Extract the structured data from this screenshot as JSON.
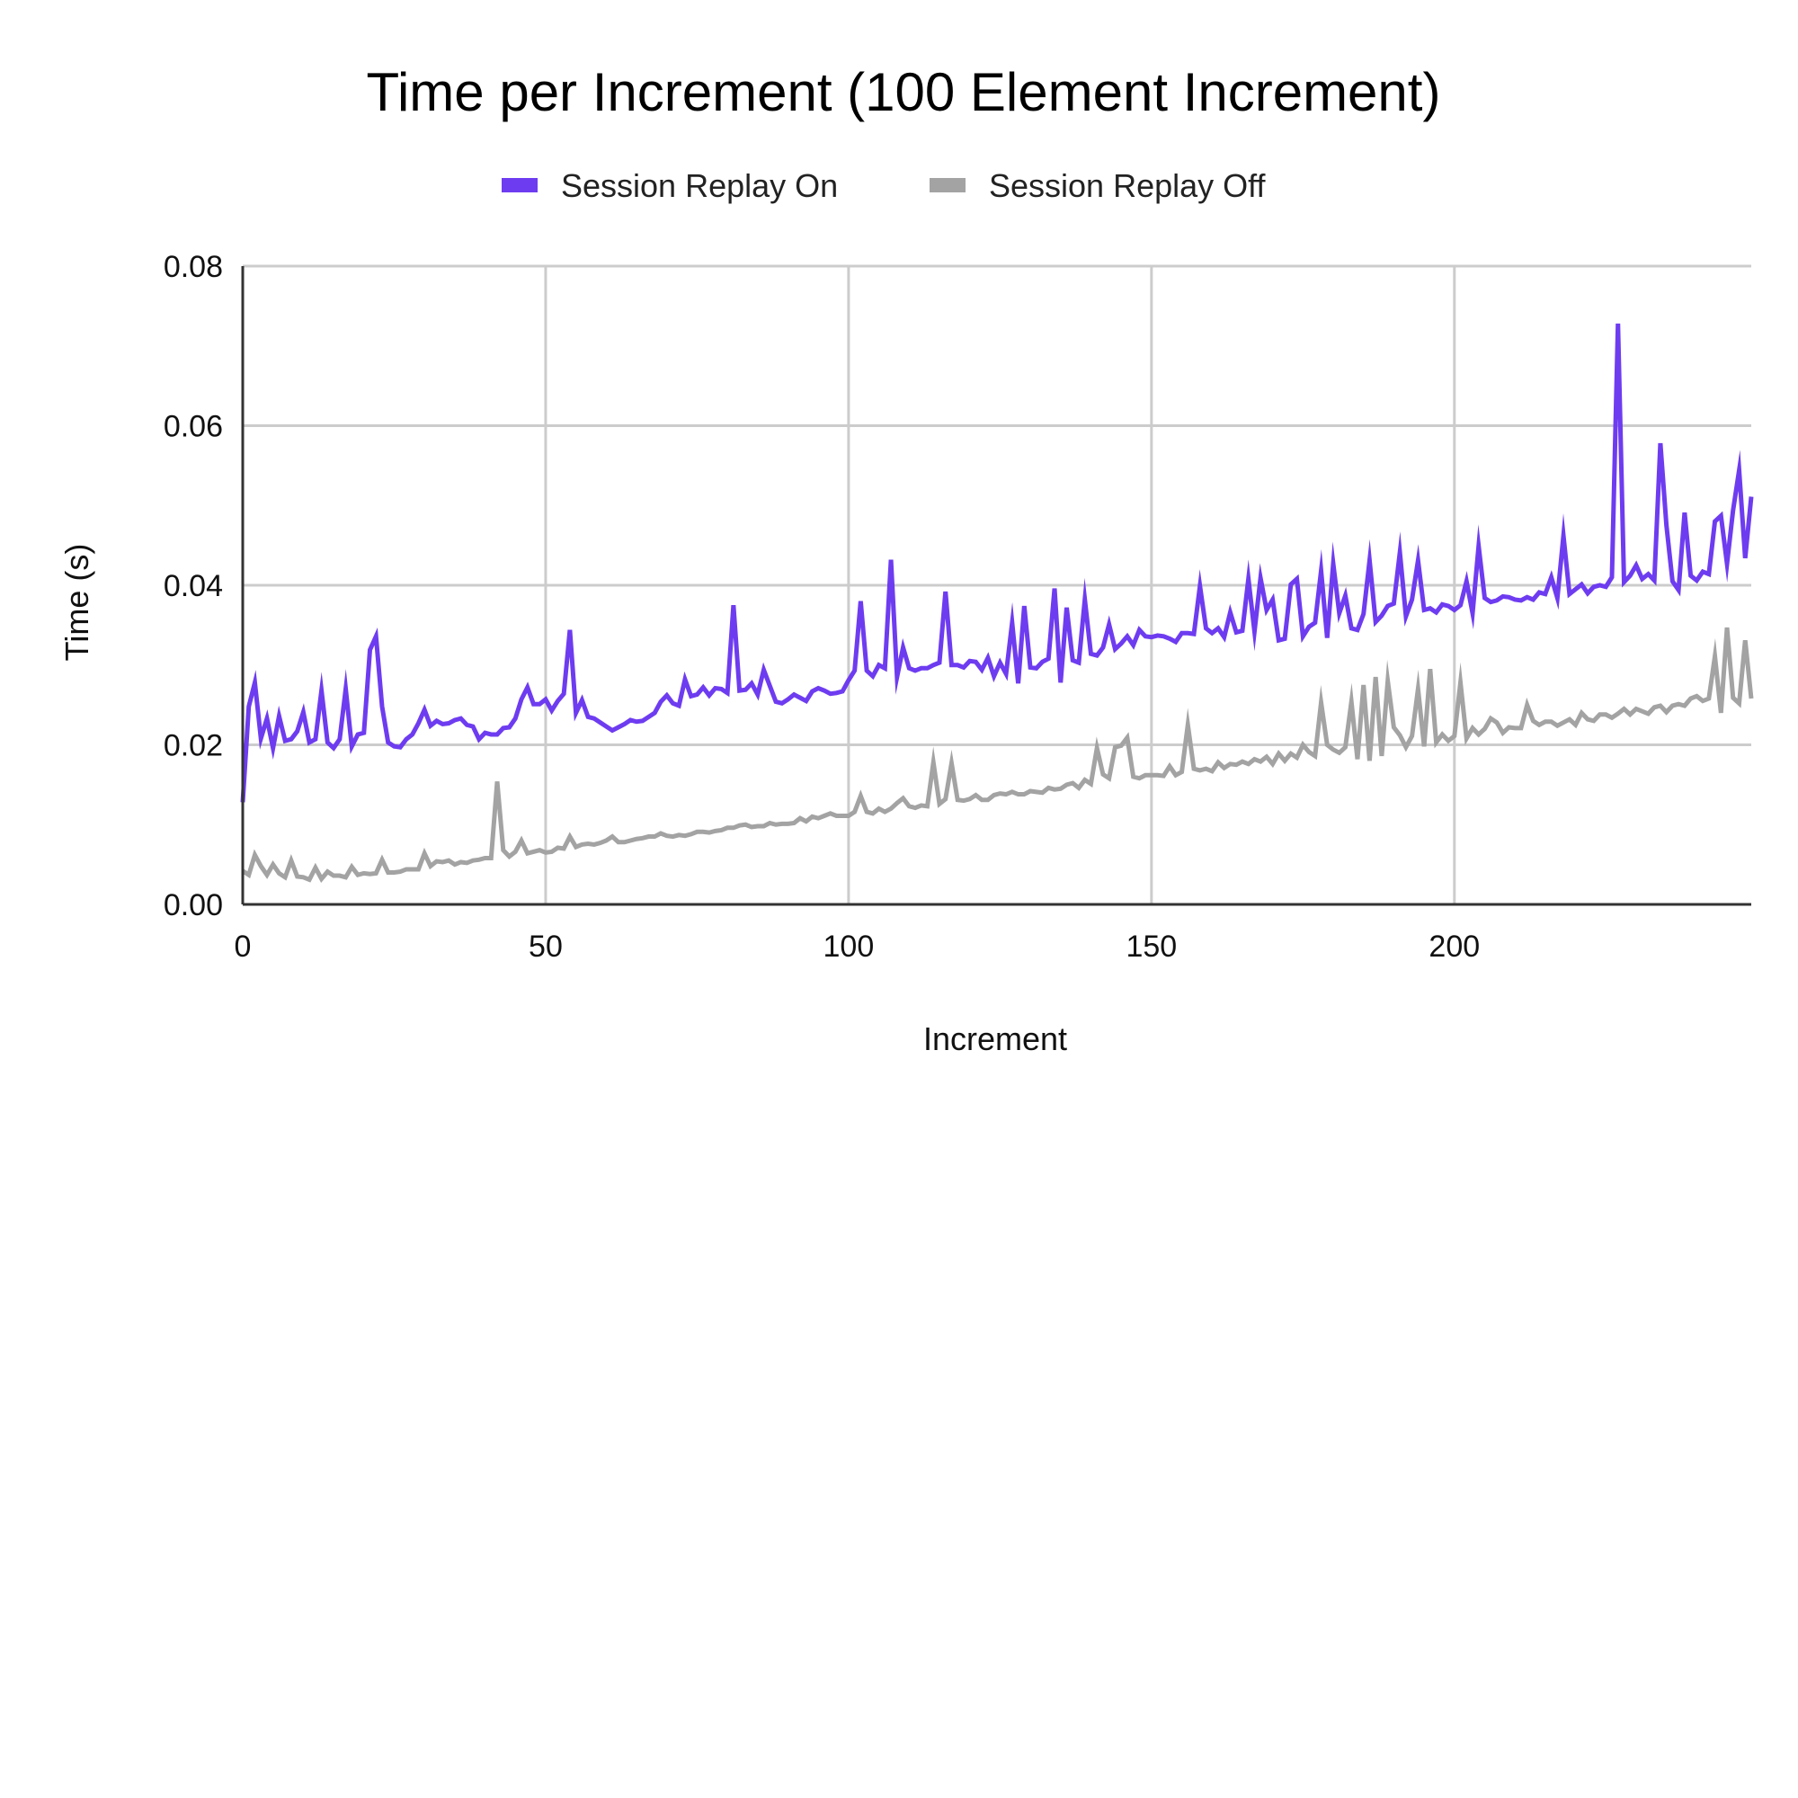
{
  "chart_data": {
    "type": "line",
    "title": "Time per Increment (100 Element Increment)",
    "xlabel": "Increment",
    "ylabel": "Time (s)",
    "xlim": [
      0,
      249
    ],
    "ylim": [
      0,
      0.08
    ],
    "x_ticks": [
      0,
      50,
      100,
      150,
      200
    ],
    "y_ticks": [
      0,
      0.02,
      0.04,
      0.06,
      0.08
    ],
    "x_tick_labels": [
      "0",
      "50",
      "100",
      "150",
      "200"
    ],
    "y_tick_labels": [
      "0.00",
      "0.02",
      "0.04",
      "0.06",
      "0.08"
    ],
    "grid": true,
    "legend_position": "top",
    "series": [
      {
        "name": "Session Replay On",
        "color": "#6e3cf0",
        "values": [
          0.0128,
          0.0248,
          0.0278,
          0.0208,
          0.0233,
          0.0196,
          0.0236,
          0.0205,
          0.0207,
          0.0217,
          0.0241,
          0.0203,
          0.0207,
          0.0268,
          0.0203,
          0.0196,
          0.0207,
          0.027,
          0.0198,
          0.0213,
          0.0215,
          0.0319,
          0.0336,
          0.0248,
          0.0203,
          0.0198,
          0.0197,
          0.0207,
          0.0213,
          0.0227,
          0.0244,
          0.0224,
          0.023,
          0.0226,
          0.0227,
          0.0231,
          0.0233,
          0.0225,
          0.0223,
          0.0207,
          0.0215,
          0.0213,
          0.0213,
          0.0221,
          0.0222,
          0.0233,
          0.0257,
          0.0272,
          0.0251,
          0.0251,
          0.0257,
          0.0243,
          0.0255,
          0.0264,
          0.0344,
          0.024,
          0.0256,
          0.0235,
          0.0233,
          0.0228,
          0.0223,
          0.0218,
          0.0222,
          0.0226,
          0.0231,
          0.0229,
          0.023,
          0.0235,
          0.024,
          0.0254,
          0.0262,
          0.0252,
          0.0249,
          0.0282,
          0.0261,
          0.0263,
          0.0272,
          0.0262,
          0.0271,
          0.027,
          0.0265,
          0.0375,
          0.0268,
          0.0269,
          0.0277,
          0.0263,
          0.0294,
          0.0274,
          0.0254,
          0.0252,
          0.0257,
          0.0263,
          0.0259,
          0.0255,
          0.0267,
          0.0271,
          0.0268,
          0.0264,
          0.0265,
          0.0267,
          0.0281,
          0.0293,
          0.038,
          0.0293,
          0.0286,
          0.03,
          0.0296,
          0.0432,
          0.0285,
          0.0322,
          0.0296,
          0.0293,
          0.0296,
          0.0296,
          0.03,
          0.0303,
          0.0392,
          0.03,
          0.03,
          0.0297,
          0.0305,
          0.0304,
          0.0294,
          0.0309,
          0.0286,
          0.0303,
          0.0289,
          0.0353,
          0.0277,
          0.0374,
          0.0297,
          0.0296,
          0.0304,
          0.0308,
          0.0396,
          0.0278,
          0.0372,
          0.0306,
          0.0303,
          0.0382,
          0.0314,
          0.0312,
          0.0322,
          0.0351,
          0.032,
          0.0327,
          0.0336,
          0.0325,
          0.0344,
          0.0336,
          0.0335,
          0.0337,
          0.0336,
          0.0333,
          0.0329,
          0.034,
          0.034,
          0.0339,
          0.0399,
          0.0346,
          0.034,
          0.0346,
          0.0335,
          0.0366,
          0.0341,
          0.0343,
          0.0408,
          0.0342,
          0.0409,
          0.0369,
          0.0382,
          0.0331,
          0.0333,
          0.0401,
          0.0408,
          0.0336,
          0.0348,
          0.0353,
          0.0418,
          0.0334,
          0.0427,
          0.0365,
          0.0387,
          0.0346,
          0.0344,
          0.0364,
          0.0431,
          0.0354,
          0.0362,
          0.0374,
          0.0377,
          0.0441,
          0.0361,
          0.0382,
          0.0431,
          0.0369,
          0.0371,
          0.0366,
          0.0376,
          0.0374,
          0.0369,
          0.0375,
          0.0405,
          0.0365,
          0.0449,
          0.0384,
          0.0379,
          0.0381,
          0.0386,
          0.0385,
          0.0382,
          0.0381,
          0.0385,
          0.0382,
          0.0391,
          0.0389,
          0.041,
          0.0384,
          0.0462,
          0.0389,
          0.0395,
          0.0401,
          0.039,
          0.0398,
          0.04,
          0.0398,
          0.041,
          0.0728,
          0.0404,
          0.0412,
          0.0425,
          0.0408,
          0.0414,
          0.0406,
          0.0578,
          0.0475,
          0.0405,
          0.0394,
          0.0491,
          0.0412,
          0.0406,
          0.0417,
          0.0414,
          0.048,
          0.0487,
          0.0427,
          0.0494,
          0.0544,
          0.0434,
          0.0511
        ]
      },
      {
        "name": "Session Replay Off",
        "color": "#a3a3a3",
        "values": [
          0.0042,
          0.0037,
          0.0062,
          0.0048,
          0.0037,
          0.005,
          0.0039,
          0.0034,
          0.0055,
          0.0035,
          0.0034,
          0.0031,
          0.0046,
          0.0032,
          0.0041,
          0.0036,
          0.0036,
          0.0034,
          0.0047,
          0.0037,
          0.0039,
          0.0038,
          0.0039,
          0.0056,
          0.004,
          0.004,
          0.0041,
          0.0044,
          0.0044,
          0.0044,
          0.0064,
          0.0048,
          0.0054,
          0.0053,
          0.0055,
          0.005,
          0.0053,
          0.0052,
          0.0055,
          0.0056,
          0.0058,
          0.0058,
          0.0154,
          0.0068,
          0.006,
          0.0066,
          0.008,
          0.0064,
          0.0066,
          0.0068,
          0.0065,
          0.0066,
          0.0071,
          0.007,
          0.0085,
          0.0072,
          0.0075,
          0.0076,
          0.0075,
          0.0077,
          0.008,
          0.0085,
          0.0078,
          0.0078,
          0.008,
          0.0082,
          0.0083,
          0.0085,
          0.0085,
          0.0089,
          0.0086,
          0.0085,
          0.0087,
          0.0086,
          0.0088,
          0.0091,
          0.0091,
          0.009,
          0.0092,
          0.0093,
          0.0096,
          0.0096,
          0.0099,
          0.01,
          0.0097,
          0.0098,
          0.0098,
          0.0102,
          0.01,
          0.0101,
          0.0101,
          0.0102,
          0.0108,
          0.0104,
          0.011,
          0.0108,
          0.0111,
          0.0114,
          0.0111,
          0.0111,
          0.0111,
          0.0116,
          0.0136,
          0.0116,
          0.0114,
          0.012,
          0.0116,
          0.012,
          0.0127,
          0.0133,
          0.0123,
          0.0121,
          0.0124,
          0.0123,
          0.0178,
          0.0126,
          0.0132,
          0.0177,
          0.0131,
          0.013,
          0.0132,
          0.0137,
          0.0131,
          0.0131,
          0.0137,
          0.0139,
          0.0138,
          0.0141,
          0.0138,
          0.0138,
          0.0142,
          0.0141,
          0.014,
          0.0146,
          0.0144,
          0.0145,
          0.015,
          0.0152,
          0.0146,
          0.0156,
          0.0151,
          0.0196,
          0.0163,
          0.0158,
          0.0197,
          0.0199,
          0.0209,
          0.016,
          0.0158,
          0.0162,
          0.0162,
          0.0162,
          0.0161,
          0.0173,
          0.0162,
          0.0166,
          0.0225,
          0.017,
          0.0168,
          0.017,
          0.0167,
          0.0178,
          0.0171,
          0.0176,
          0.0175,
          0.0179,
          0.0176,
          0.0182,
          0.0179,
          0.0185,
          0.0176,
          0.0189,
          0.018,
          0.0189,
          0.0184,
          0.02,
          0.0191,
          0.0186,
          0.0253,
          0.02,
          0.0194,
          0.019,
          0.0197,
          0.0254,
          0.0182,
          0.0275,
          0.018,
          0.0285,
          0.0186,
          0.028,
          0.0222,
          0.0212,
          0.0197,
          0.0211,
          0.027,
          0.0198,
          0.0295,
          0.0203,
          0.0213,
          0.0205,
          0.0211,
          0.0278,
          0.0208,
          0.0221,
          0.0213,
          0.022,
          0.0233,
          0.0228,
          0.0215,
          0.0222,
          0.0221,
          0.0221,
          0.025,
          0.023,
          0.0225,
          0.0229,
          0.0229,
          0.0224,
          0.0228,
          0.0232,
          0.0225,
          0.024,
          0.0232,
          0.023,
          0.0238,
          0.0238,
          0.0234,
          0.0239,
          0.0245,
          0.0238,
          0.0245,
          0.0242,
          0.0239,
          0.0247,
          0.0249,
          0.0241,
          0.0249,
          0.0251,
          0.0249,
          0.0258,
          0.0261,
          0.0255,
          0.0258,
          0.0311,
          0.024,
          0.0347,
          0.0259,
          0.0252,
          0.0331,
          0.0258
        ]
      }
    ]
  }
}
